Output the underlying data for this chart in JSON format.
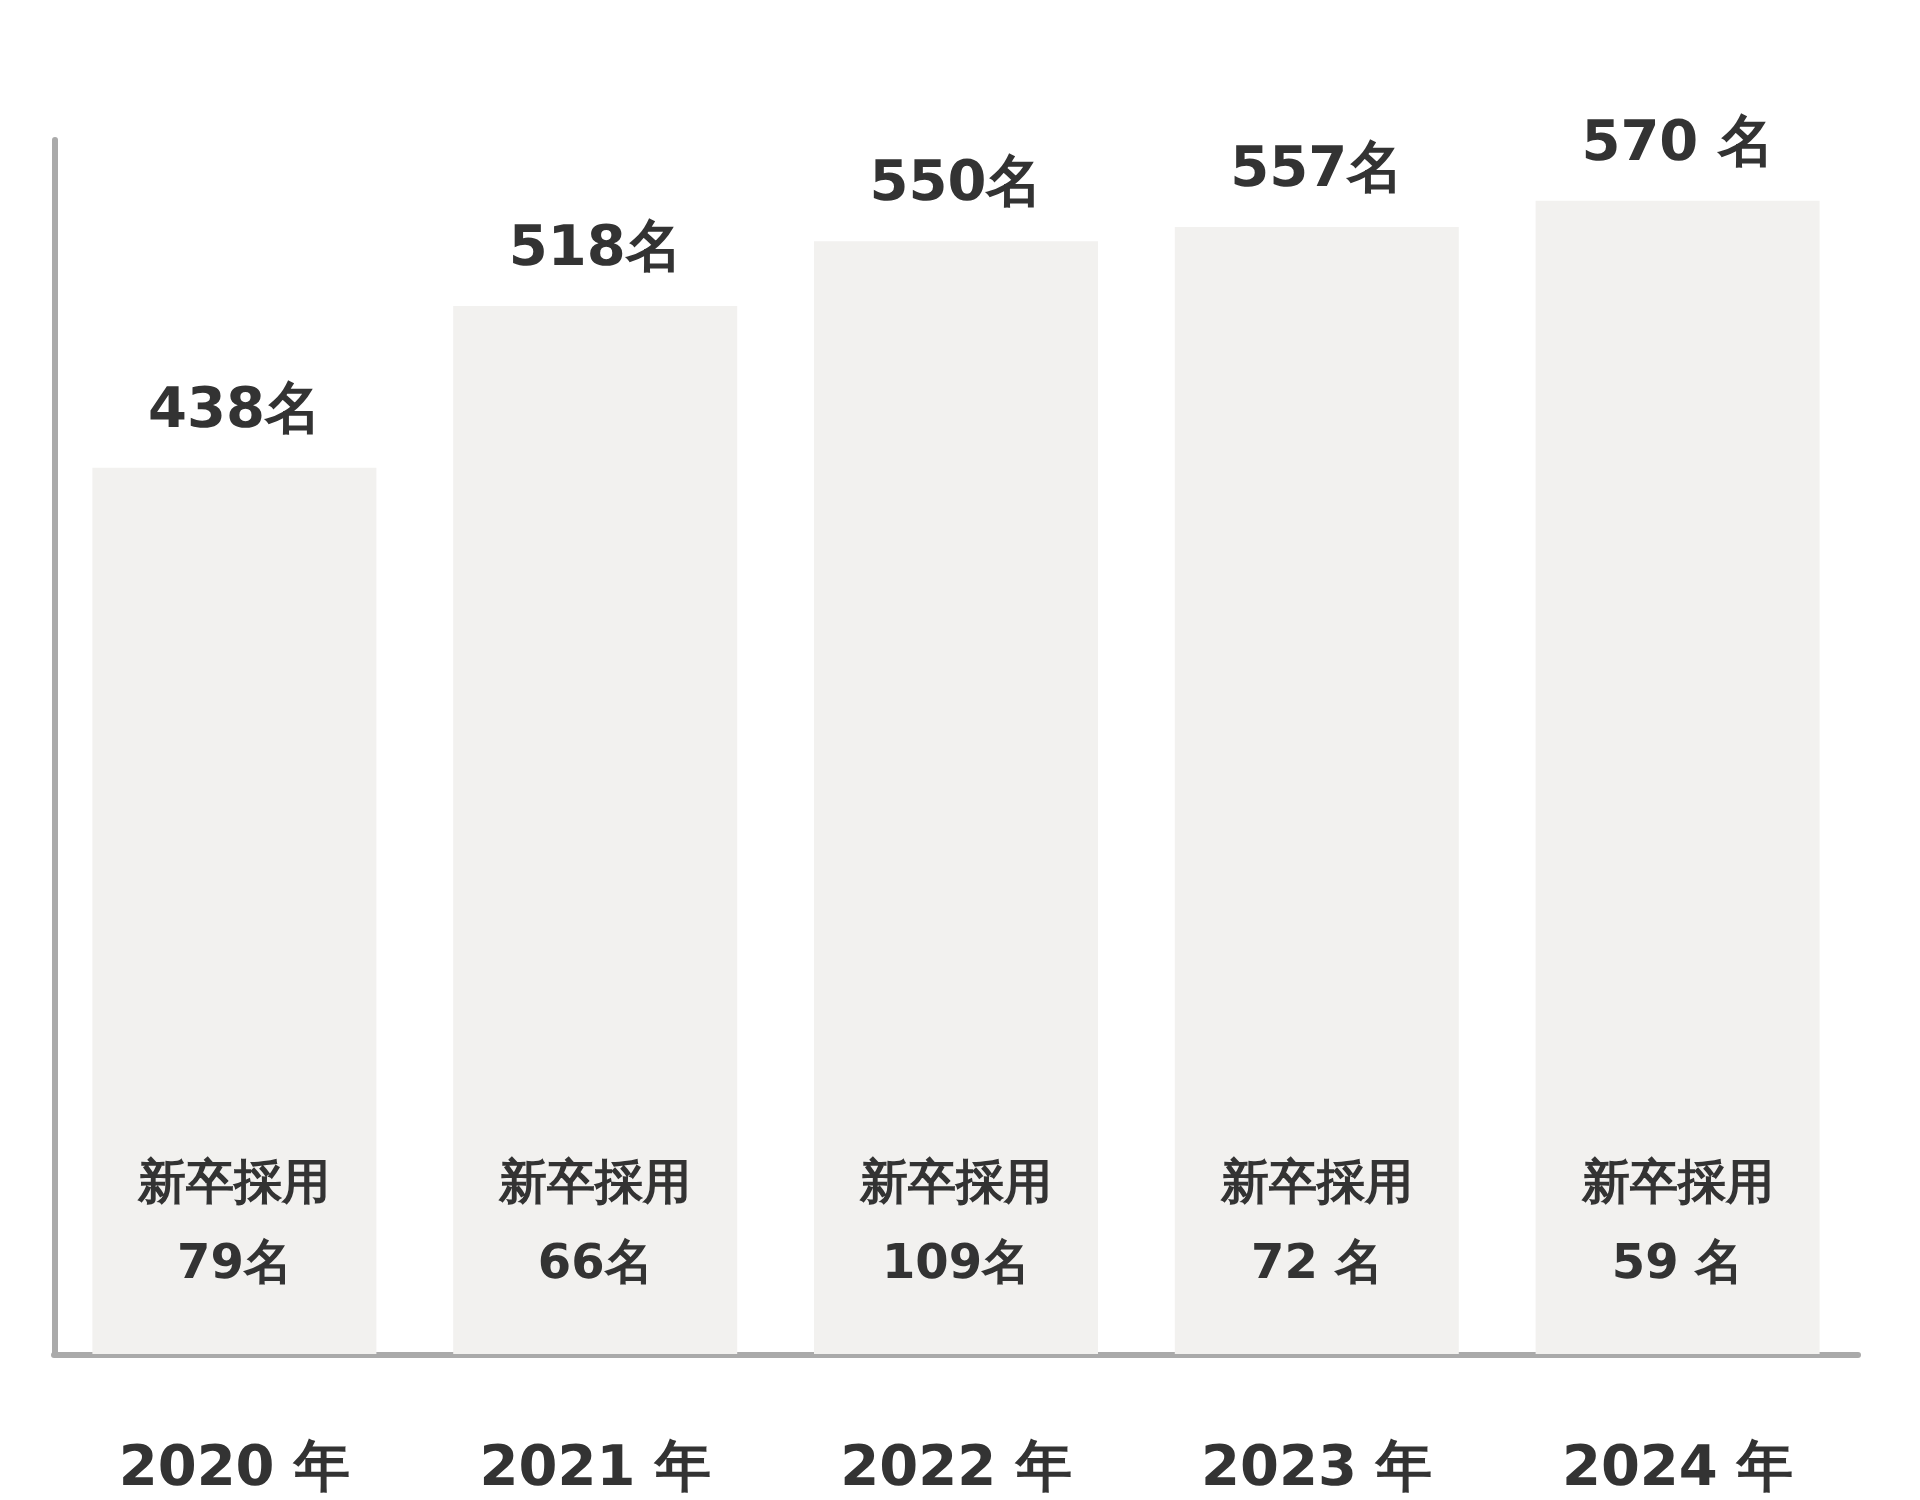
{
  "chart_data": {
    "type": "bar",
    "categories": [
      "2020 年",
      "2021 年",
      "2022 年",
      "2023 年",
      "2024 年"
    ],
    "values": [
      438,
      518,
      550,
      557,
      570
    ],
    "color": "#f2f1ef",
    "value_labels": [
      "438名",
      "518名",
      "550名",
      "557名",
      "570 名"
    ],
    "ylim": [
      0,
      600
    ],
    "tick_labels": "x",
    "grid": false,
    "annotations": [
      "新卒採用\n79名",
      "新卒採用\n66名",
      "新卒採用\n109名",
      "新卒採用\n72 名",
      "新卒採用\n59 名"
    ]
  }
}
